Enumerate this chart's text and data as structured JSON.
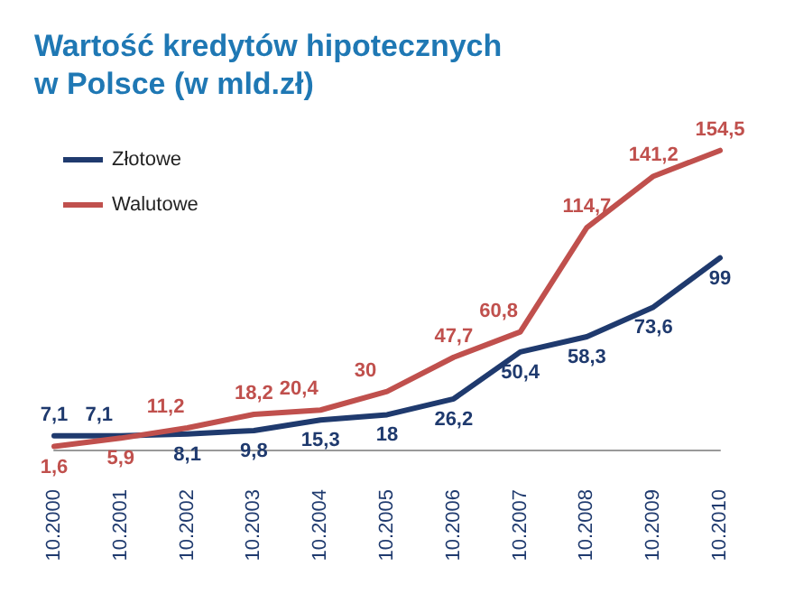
{
  "chart_data": {
    "type": "line",
    "title": "Wartość kredytów hipotecznych w Polsce (w mld.zł)",
    "categories": [
      "10.2000",
      "10.2001",
      "10.2002",
      "10.2003",
      "10.2004",
      "10.2005",
      "10.2006",
      "10.2007",
      "10.2008",
      "10.2009",
      "10.2010"
    ],
    "series": [
      {
        "name": "Złotowe",
        "color": "#1f3a6e",
        "values": [
          7.1,
          7.1,
          8.1,
          9.8,
          15.3,
          18,
          26.2,
          50.4,
          58.3,
          73.6,
          99
        ],
        "value_labels": [
          "7,1",
          "7,1",
          "8,1",
          "9,8",
          "15,3",
          "18",
          "26,2",
          "50,4",
          "58,3",
          "73,6",
          "99"
        ]
      },
      {
        "name": "Walutowe",
        "color": "#c0504d",
        "values": [
          1.6,
          5.9,
          11.2,
          18.2,
          20.4,
          30,
          47.7,
          60.8,
          114.7,
          141.2,
          154.5
        ],
        "value_labels": [
          "1,6",
          "5,9",
          "11,2",
          "18,2",
          "20,4",
          "30",
          "47,7",
          "60,8",
          "114,7",
          "141,2",
          "154,5"
        ]
      }
    ],
    "legend": "top left",
    "grid": false,
    "marker": "none",
    "line_style": "solid"
  }
}
